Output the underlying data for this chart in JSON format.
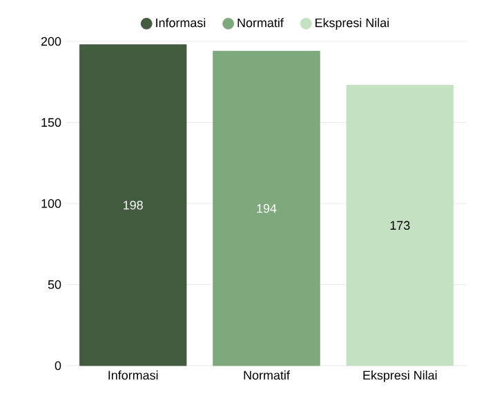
{
  "chart_data": {
    "type": "bar",
    "categories": [
      "Informasi",
      "Normatif",
      "Ekspresi Nilai"
    ],
    "series": [
      {
        "name": "Informasi",
        "color": "#435b3f",
        "values": [
          198,
          null,
          null
        ]
      },
      {
        "name": "Normatif",
        "color": "#7ea97c",
        "values": [
          null,
          194,
          null
        ]
      },
      {
        "name": "Ekspresi Nilai",
        "color": "#c4e2c2",
        "values": [
          null,
          null,
          173
        ]
      }
    ],
    "ylim": [
      0,
      200
    ],
    "yticks": [
      0,
      50,
      100,
      150,
      200
    ],
    "grid": "y",
    "legend": "top",
    "data_labels": true
  }
}
